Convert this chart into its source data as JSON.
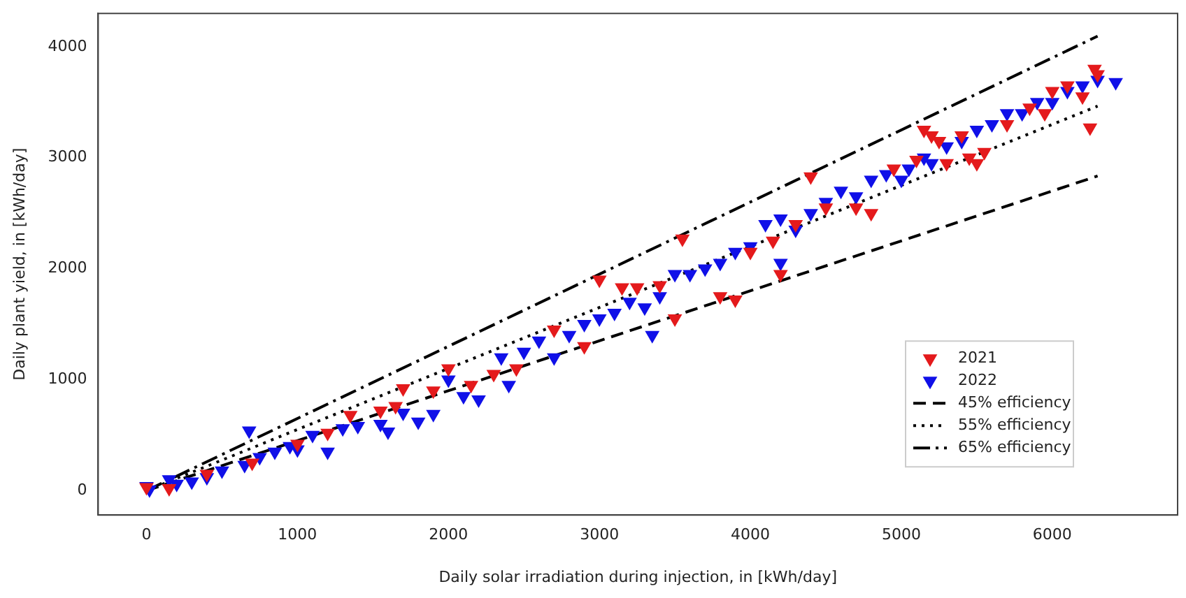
{
  "chart_data": {
    "type": "scatter",
    "xlabel": "Daily solar irradiation during injection, in [kWh/day]",
    "ylabel": "Daily plant yield, in [kWh/day]",
    "xlim": [
      -320,
      6830
    ],
    "ylim": [
      -220,
      4300
    ],
    "xticks": [
      0,
      1000,
      2000,
      3000,
      4000,
      5000,
      6000
    ],
    "yticks": [
      0,
      1000,
      2000,
      3000,
      4000
    ],
    "grid": false,
    "legend": "bottom right",
    "marker": "triangle_down",
    "series": [
      {
        "name": "2021",
        "color": "#e41a1c",
        "x": [
          0,
          150,
          400,
          700,
          1000,
          1200,
          1350,
          1550,
          1650,
          1700,
          1900,
          2000,
          2150,
          2300,
          2450,
          2700,
          2900,
          3000,
          3150,
          3250,
          3400,
          3550,
          3500,
          3800,
          3900,
          4000,
          4150,
          4200,
          4300,
          4400,
          4500,
          4700,
          4800,
          4950,
          5100,
          5150,
          5200,
          5250,
          5300,
          5400,
          5450,
          5500,
          5550,
          5700,
          5850,
          5950,
          6000,
          6100,
          6200,
          6250,
          6280,
          6300
        ],
        "values": [
          30,
          20,
          150,
          250,
          420,
          520,
          680,
          720,
          760,
          920,
          900,
          1100,
          950,
          1050,
          1100,
          1450,
          1300,
          1900,
          1830,
          1830,
          1850,
          2270,
          1550,
          1750,
          1720,
          2150,
          2250,
          1950,
          2400,
          2830,
          2550,
          2550,
          2500,
          2900,
          2980,
          3250,
          3200,
          3150,
          2950,
          3200,
          3000,
          2950,
          3050,
          3300,
          3450,
          3400,
          3600,
          3650,
          3550,
          3270,
          3800,
          3750
        ]
      },
      {
        "name": "2022",
        "color": "#1010e8",
        "x": [
          0,
          20,
          150,
          200,
          300,
          400,
          500,
          650,
          680,
          750,
          850,
          950,
          1000,
          1100,
          1200,
          1300,
          1400,
          1550,
          1600,
          1700,
          1800,
          1900,
          2000,
          2100,
          2200,
          2350,
          2400,
          2500,
          2600,
          2700,
          2800,
          2900,
          3000,
          3100,
          3200,
          3300,
          3350,
          3400,
          3500,
          3600,
          3700,
          3800,
          3900,
          4000,
          4100,
          4200,
          4200,
          4300,
          4400,
          4500,
          4600,
          4700,
          4800,
          4900,
          5000,
          5050,
          5150,
          5200,
          5300,
          5400,
          5500,
          5600,
          5700,
          5800,
          5900,
          6000,
          6100,
          6200,
          6300,
          6420
        ],
        "values": [
          40,
          10,
          100,
          60,
          80,
          120,
          180,
          230,
          540,
          300,
          350,
          400,
          370,
          500,
          350,
          560,
          580,
          600,
          530,
          700,
          620,
          690,
          1000,
          850,
          820,
          1200,
          950,
          1250,
          1350,
          1200,
          1400,
          1500,
          1550,
          1600,
          1700,
          1650,
          1400,
          1750,
          1950,
          1950,
          2000,
          2050,
          2150,
          2200,
          2400,
          2450,
          2050,
          2350,
          2500,
          2600,
          2700,
          2650,
          2800,
          2850,
          2800,
          2900,
          3000,
          2950,
          3100,
          3150,
          3250,
          3300,
          3400,
          3400,
          3500,
          3500,
          3600,
          3650,
          3700,
          3680
        ]
      },
      {
        "name": "45% efficiency",
        "type": "line",
        "color": "#000000",
        "line_style": "dashed",
        "marker": "none",
        "x": [
          0,
          6300
        ],
        "values": [
          0,
          2835
        ]
      },
      {
        "name": "55% efficiency",
        "type": "line",
        "color": "#000000",
        "line_style": "dotted",
        "marker": "none",
        "x": [
          0,
          6300
        ],
        "values": [
          0,
          3465
        ]
      },
      {
        "name": "65% efficiency",
        "type": "line",
        "color": "#000000",
        "line_style": "dashdot",
        "marker": "none",
        "x": [
          0,
          6300
        ],
        "values": [
          0,
          4095
        ]
      }
    ]
  }
}
